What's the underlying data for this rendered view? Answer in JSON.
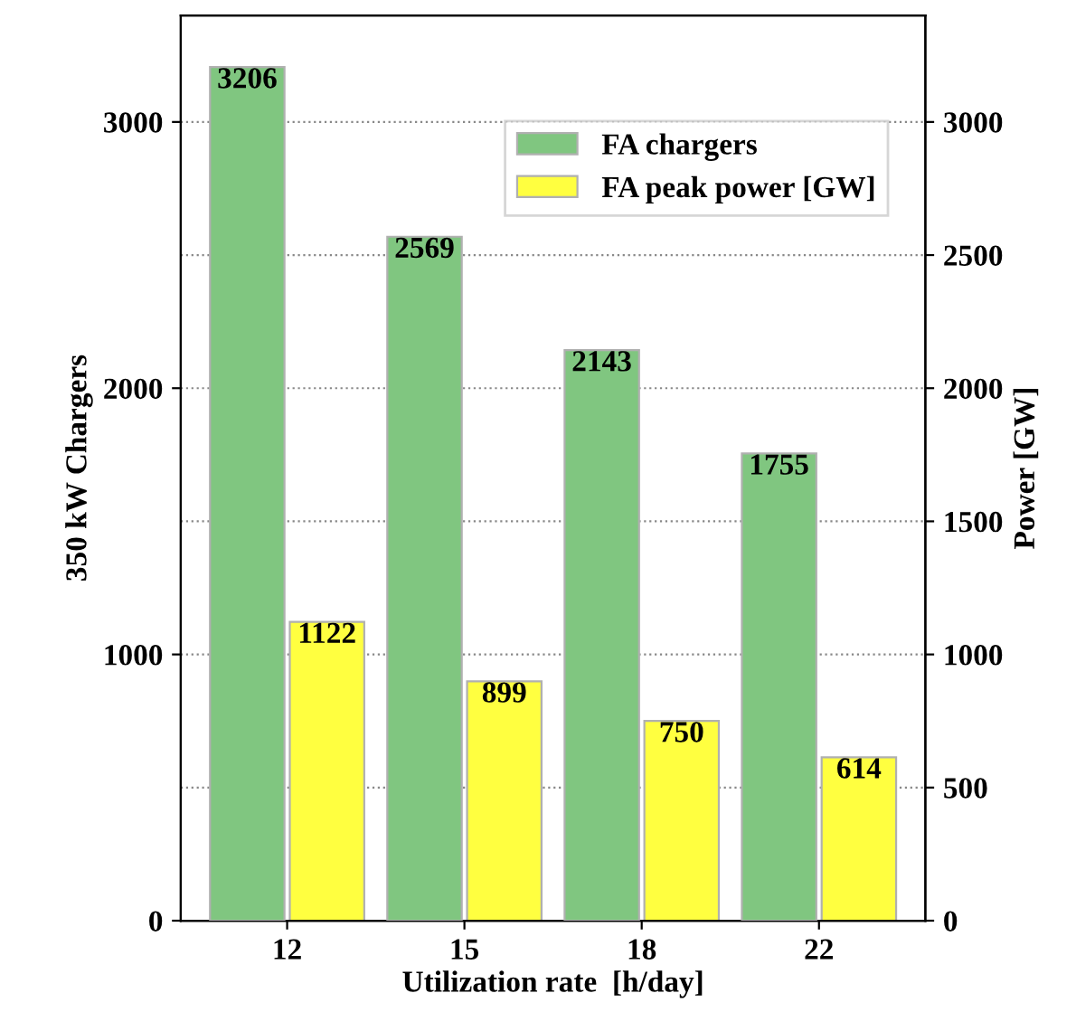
{
  "chart_data": {
    "type": "bar",
    "xlabel": "Utilization rate  [h/day]",
    "ylabel": "350 kW Chargers",
    "y2label": "Power [GW]",
    "categories": [
      "12",
      "15",
      "18",
      "22"
    ],
    "series": [
      {
        "name": "FA chargers",
        "color": "#80c680",
        "values": [
          3206,
          2569,
          2143,
          1755
        ]
      },
      {
        "name": "FA peak power [GW]",
        "color": "#ffff40",
        "values": [
          1122,
          899,
          750,
          614
        ],
        "axis": "y2"
      }
    ],
    "ylim": [
      0,
      3400
    ],
    "yticks": [
      0,
      1000,
      2000,
      3000
    ],
    "y2lim": [
      0,
      3400
    ],
    "y2ticks": [
      0,
      500,
      1000,
      1500,
      2000,
      2500,
      3000
    ],
    "grid": "y",
    "legend": "top right",
    "data_labels": true
  }
}
